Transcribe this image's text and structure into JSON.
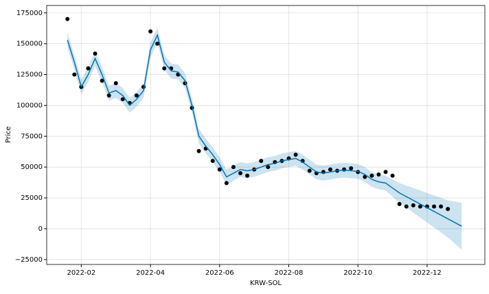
{
  "chart_data": {
    "type": "forecast",
    "x_label": "KRW-SOL",
    "y_label": "Price",
    "x": [
      1.6,
      1.8,
      2.0,
      2.2,
      2.4,
      2.6,
      2.8,
      3.0,
      3.2,
      3.4,
      3.6,
      3.8,
      4.0,
      4.2,
      4.4,
      4.6,
      4.8,
      5.0,
      5.2,
      5.4,
      5.6,
      5.8,
      6.0,
      6.2,
      6.4,
      6.6,
      6.8,
      7.0,
      7.2,
      7.4,
      7.6,
      7.8,
      8.0,
      8.2,
      8.4,
      8.6,
      8.8,
      9.0,
      9.2,
      9.4,
      9.6,
      9.8,
      10.0,
      10.2,
      10.4,
      10.6,
      10.8,
      11.0,
      11.2,
      11.4,
      11.6,
      11.8,
      12.0,
      12.2,
      12.4,
      12.6,
      12.8,
      13.0
    ],
    "observed": [
      170000,
      125000,
      115000,
      130000,
      142000,
      120000,
      108000,
      118000,
      105000,
      102000,
      108000,
      115000,
      160000,
      150000,
      130000,
      130000,
      125000,
      118000,
      98000,
      63000,
      65000,
      55000,
      48000,
      37000,
      50000,
      45000,
      43000,
      48000,
      55000,
      50000,
      54000,
      55000,
      57000,
      60000,
      55000,
      47000,
      45000,
      46000,
      48000,
      47000,
      48000,
      49000,
      46000,
      42000,
      43000,
      44000,
      46000,
      43000,
      20000,
      18000,
      19000,
      18000,
      18000,
      18000,
      18000,
      16000,
      null,
      null
    ],
    "yhat": [
      153000,
      135000,
      115000,
      125000,
      138000,
      125000,
      110000,
      112000,
      108000,
      100000,
      105000,
      112000,
      145000,
      157000,
      135000,
      128000,
      127000,
      120000,
      100000,
      75000,
      67000,
      60000,
      52000,
      42000,
      45000,
      48000,
      47000,
      48000,
      50000,
      52000,
      53000,
      55000,
      56000,
      57000,
      54000,
      50000,
      46000,
      45000,
      46000,
      47000,
      47500,
      47000,
      46500,
      44000,
      40000,
      38000,
      37000,
      33000,
      29000,
      26000,
      23000,
      20000,
      17000,
      14000,
      11000,
      8000,
      5000,
      2000
    ],
    "yhat_upper": [
      159000,
      141000,
      121000,
      131000,
      144000,
      131000,
      116000,
      118000,
      114000,
      106000,
      111000,
      118000,
      151000,
      163000,
      141000,
      134000,
      133000,
      126000,
      106000,
      81000,
      73000,
      66000,
      58000,
      48000,
      51000,
      54000,
      53000,
      54000,
      56000,
      58000,
      59000,
      61000,
      62000,
      63000,
      60000,
      56000,
      52000,
      51000,
      52000,
      53000,
      53500,
      53000,
      52500,
      50000,
      46000,
      44000,
      43000,
      40000,
      37000,
      35000,
      33000,
      31000,
      29000,
      27000,
      25000,
      23000,
      22000,
      21000
    ],
    "yhat_lower": [
      147000,
      129000,
      109000,
      119000,
      132000,
      119000,
      104000,
      106000,
      102000,
      94000,
      99000,
      106000,
      139000,
      151000,
      129000,
      122000,
      121000,
      114000,
      94000,
      69000,
      61000,
      54000,
      46000,
      36000,
      39000,
      42000,
      41000,
      42000,
      44000,
      46000,
      47000,
      49000,
      50000,
      51000,
      48000,
      44000,
      40000,
      39000,
      40000,
      41000,
      41500,
      41000,
      40500,
      38000,
      34000,
      32000,
      31000,
      26000,
      21000,
      17000,
      13000,
      9000,
      5000,
      1000,
      -3000,
      -7000,
      -12000,
      -17000
    ],
    "point_color": "#000000",
    "line_color": "#0072B2",
    "band_color": "#0072B2",
    "xlim": [
      1.0,
      13.67
    ],
    "ylim": [
      -29000,
      181000
    ],
    "xticks": [
      {
        "value": 2,
        "label": "2022-02"
      },
      {
        "value": 4,
        "label": "2022-04"
      },
      {
        "value": 6,
        "label": "2022-06"
      },
      {
        "value": 8,
        "label": "2022-08"
      },
      {
        "value": 10,
        "label": "2022-10"
      },
      {
        "value": 12,
        "label": "2022-12"
      }
    ],
    "yticks": [
      {
        "value": -25000,
        "label": "−25000"
      },
      0,
      25000,
      50000,
      75000,
      100000,
      125000,
      150000,
      175000
    ],
    "grid": true
  }
}
